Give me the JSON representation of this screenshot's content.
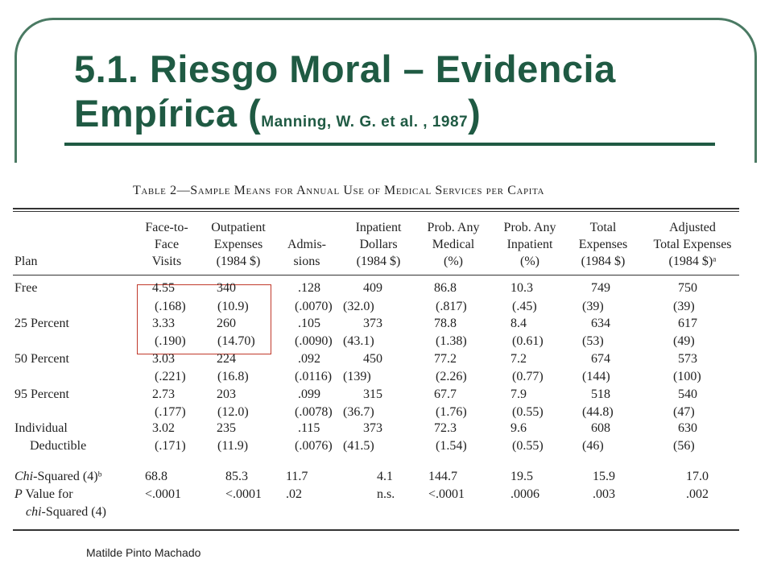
{
  "slide": {
    "title_line1": "5.1. Riesgo Moral – Evidencia",
    "title_line2": "Empírica (",
    "citation": "Manning, W. G. et al. , 1987",
    "title_close": ")",
    "author": "Matilde Pinto Machado"
  },
  "table": {
    "caption": "Table 2—Sample Means for Annual Use of Medical Services per Capita",
    "headers": [
      [
        "Plan"
      ],
      [
        "Face-to-",
        "Face",
        "Visits"
      ],
      [
        "Outpatient",
        "Expenses",
        "(1984 $)"
      ],
      [
        "Admis-",
        "sions"
      ],
      [
        "Inpatient",
        "Dollars",
        "(1984 $)"
      ],
      [
        "Prob. Any",
        "Medical",
        "(%)"
      ],
      [
        "Prob. Any",
        "Inpatient",
        "(%)"
      ],
      [
        "Total",
        "Expenses",
        "(1984 $)"
      ],
      [
        "Adjusted",
        "Total Expenses",
        "(1984 $)ᵃ"
      ]
    ],
    "rows": [
      {
        "label": "Free",
        "values": [
          "4.55",
          "340",
          ".128",
          "409",
          "86.8",
          "10.3",
          "749",
          "750"
        ]
      },
      {
        "label": "",
        "values": [
          "(.168)",
          "(10.9)",
          "(.0070)",
          "(32.0)",
          "(.817)",
          "(.45)",
          "(39)",
          "(39)"
        ]
      },
      {
        "label": "25 Percent",
        "values": [
          "3.33",
          "260",
          ".105",
          "373",
          "78.8",
          "8.4",
          "634",
          "617"
        ]
      },
      {
        "label": "",
        "values": [
          "(.190)",
          "(14.70)",
          "(.0090)",
          "(43.1)",
          "(1.38)",
          "(0.61)",
          "(53)",
          "(49)"
        ]
      },
      {
        "label": "50 Percent",
        "values": [
          "3.03",
          "224",
          ".092",
          "450",
          "77.2",
          "7.2",
          "674",
          "573"
        ]
      },
      {
        "label": "",
        "values": [
          "(.221)",
          "(16.8)",
          "(.0116)",
          "(139)",
          "(2.26)",
          "(0.77)",
          "(144)",
          "(100)"
        ]
      },
      {
        "label": "95 Percent",
        "values": [
          "2.73",
          "203",
          ".099",
          "315",
          "67.7",
          "7.9",
          "518",
          "540"
        ]
      },
      {
        "label": "",
        "values": [
          "(.177)",
          "(12.0)",
          "(.0078)",
          "(36.7)",
          "(1.76)",
          "(0.55)",
          "(44.8)",
          "(47)"
        ]
      },
      {
        "label": "Individual",
        "values": [
          "3.02",
          "235",
          ".115",
          "373",
          "72.3",
          "9.6",
          "608",
          "630"
        ]
      },
      {
        "label": "Deductible",
        "values": [
          "(.171)",
          "(11.9)",
          "(.0076)",
          "(41.5)",
          "(1.54)",
          "(0.55)",
          "(46)",
          "(56)"
        ]
      }
    ],
    "stats": [
      {
        "label": "Chi-Squared (4)ᵇ",
        "values": [
          "68.8",
          "85.3",
          "11.7",
          "4.1",
          "144.7",
          "19.5",
          "15.9",
          "17.0"
        ]
      },
      {
        "label": "P Value for",
        "values": [
          "<.0001",
          "<.0001",
          ".02",
          "n.s.",
          "<.0001",
          ".0006",
          ".003",
          ".002"
        ]
      },
      {
        "label": "chi-Squared (4)",
        "values": []
      }
    ]
  },
  "colors": {
    "title": "#1f5a43",
    "frame": "#4a7a63",
    "highlight_box": "#c0392b"
  }
}
